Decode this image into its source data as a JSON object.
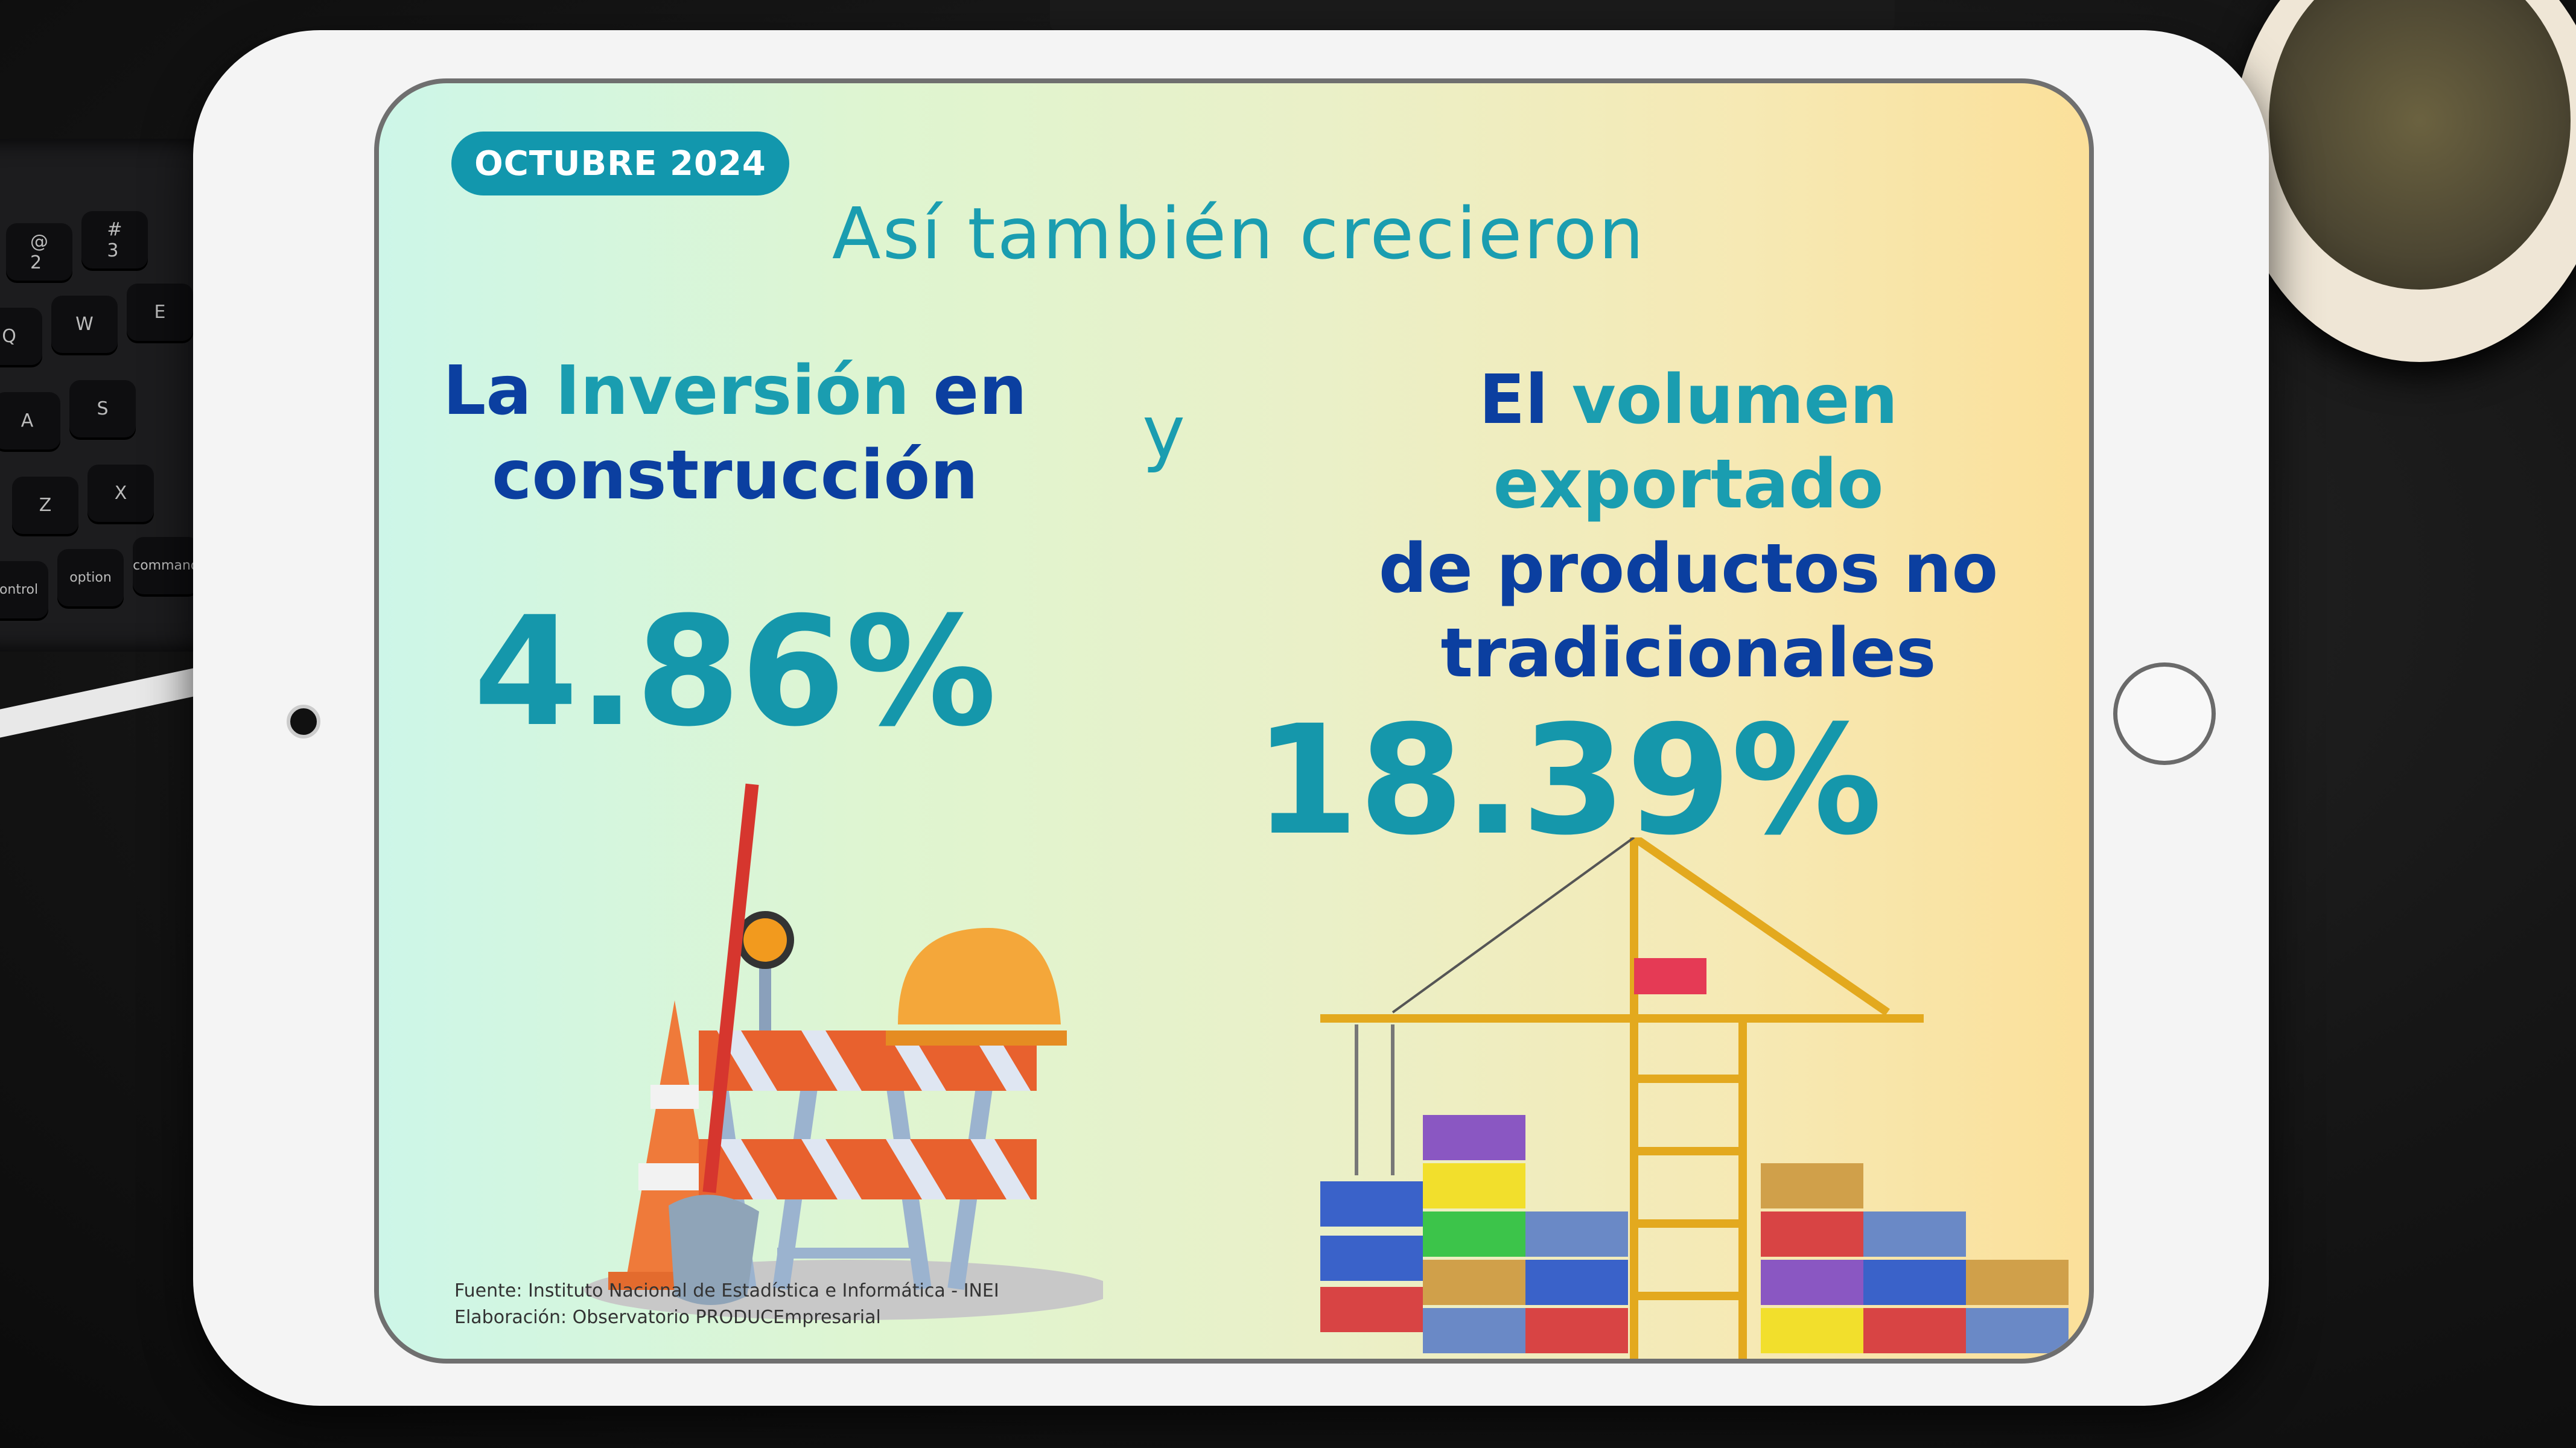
{
  "badge": "OCTUBRE 2024",
  "title": "Así también crecieron",
  "left": {
    "label_prefix": "La ",
    "label_highlight": "Inversión",
    "label_mid": " en",
    "label_line2": "construcción",
    "value": "4.86%"
  },
  "conjunction": "y",
  "right": {
    "label_prefix": "El ",
    "label_highlight": "volumen exportado",
    "label_line2": "de productos no",
    "label_line3": "tradicionales",
    "value": "18.39%"
  },
  "source": {
    "line1": "Fuente: Instituto Nacional de Estadística e Informática - INEI",
    "line2": "Elaboración: Observatorio PRODUCEmpresarial"
  },
  "keyboard": {
    "keys": [
      "@\n2",
      "#\n3",
      "Q",
      "W",
      "E",
      "A",
      "S",
      "Z",
      "X",
      "control",
      "option",
      "command"
    ]
  },
  "colors": {
    "accent": "#1a9db0",
    "navy": "#0b3fa0",
    "badge_bg": "#1297ad"
  }
}
